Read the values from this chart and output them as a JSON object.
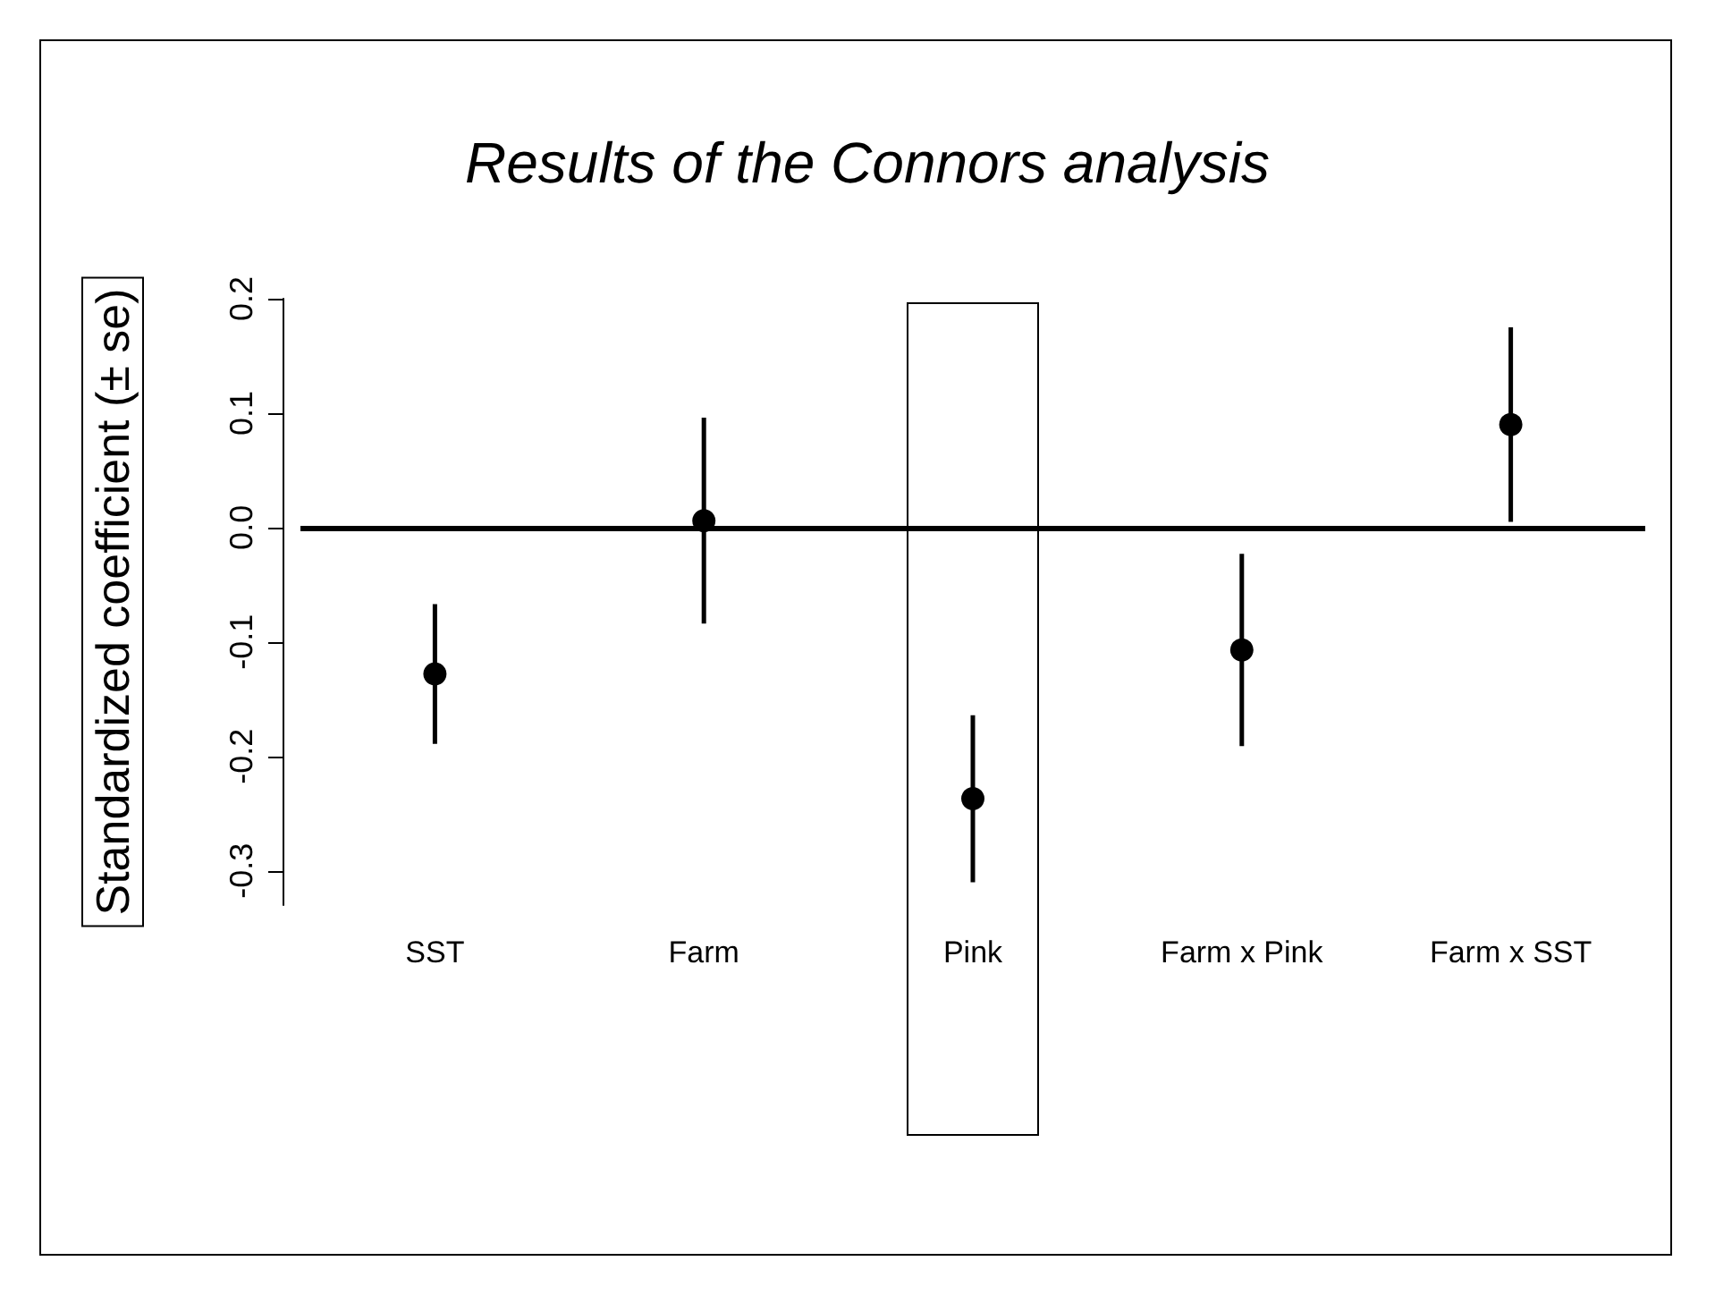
{
  "chart_data": {
    "type": "scatter",
    "title": "Results of the Connors analysis",
    "ylabel": "Standardized coefficient (± se)",
    "categories": [
      "SST",
      "Farm",
      "Pink",
      "Farm x Pink",
      "Farm x SST"
    ],
    "series": [
      {
        "color": "#000000",
        "values": [
          -0.128,
          0.006,
          -0.237,
          -0.107,
          0.09
        ],
        "errors": [
          0.061,
          0.09,
          0.073,
          0.084,
          0.085
        ]
      }
    ],
    "ylim": [
      -0.33,
      0.2
    ],
    "yticks": [
      -0.3,
      -0.2,
      -0.1,
      {
        "value": 0,
        "label": "0.0"
      },
      0.1,
      0.2
    ],
    "ref_lines": [
      {
        "axis": "y",
        "value": 0,
        "color": "#000000"
      }
    ],
    "marker": "circle",
    "grid": false
  }
}
